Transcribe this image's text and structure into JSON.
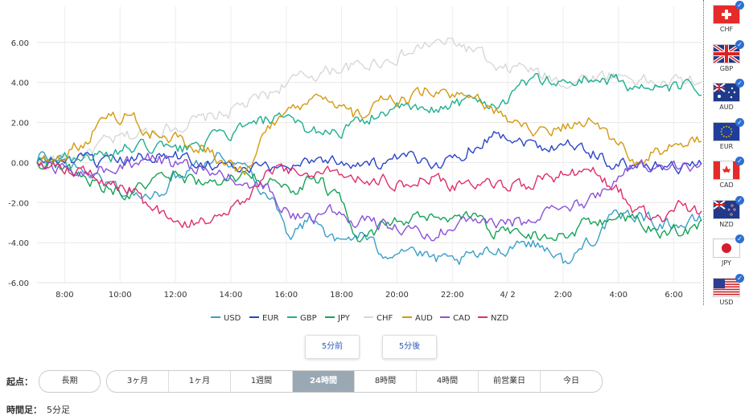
{
  "chart_data": {
    "type": "line",
    "x_ticks": [
      "8:00",
      "10:00",
      "12:00",
      "14:00",
      "16:00",
      "18:00",
      "20:00",
      "22:00",
      "4/ 2",
      "2:00",
      "4:00",
      "6:00"
    ],
    "y_ticks": [
      "6.00",
      "4.00",
      "2.00",
      "0.00",
      "-2.00",
      "-4.00",
      "-6.00"
    ],
    "ylim": [
      -6,
      7.8
    ],
    "xlim": [
      0,
      288
    ],
    "grid": true,
    "series": [
      {
        "name": "USD",
        "color": "#3a9fc9",
        "keys": [
          0,
          0.3,
          10,
          0.1,
          20,
          -0.4,
          30,
          -1.0,
          40,
          -1.5,
          50,
          -1.8,
          60,
          -0.7,
          70,
          0.1,
          80,
          0.3,
          90,
          -0.2,
          100,
          -1.5,
          110,
          -3.5,
          120,
          -2.8,
          130,
          -4.0,
          140,
          -3.6,
          150,
          -4.5,
          160,
          -4.2,
          170,
          -4.8,
          180,
          -5.0,
          190,
          -4.7,
          200,
          -4.4,
          210,
          -3.9,
          220,
          -4.2,
          230,
          -5.0,
          240,
          -3.8,
          250,
          -2.8,
          260,
          -2.6,
          270,
          -3.0,
          280,
          -3.1,
          288,
          -2.9
        ]
      },
      {
        "name": "EUR",
        "color": "#2b45c9",
        "keys": [
          0,
          0.0,
          10,
          0.1,
          20,
          0.1,
          30,
          -0.1,
          40,
          0.1,
          50,
          0.4,
          60,
          0.3,
          70,
          0.1,
          80,
          -0.1,
          90,
          -0.4,
          100,
          -0.3,
          110,
          -0.1,
          120,
          0.2,
          130,
          0.1,
          140,
          0.0,
          150,
          -0.1,
          160,
          0.2,
          170,
          0.0,
          180,
          0.1,
          190,
          0.9,
          200,
          1.5,
          210,
          1.1,
          220,
          0.8,
          230,
          1.0,
          240,
          0.5,
          250,
          0.0,
          260,
          -0.2,
          270,
          -0.1,
          280,
          -0.2,
          288,
          -0.1
        ]
      },
      {
        "name": "GBP",
        "color": "#1fae91",
        "keys": [
          0,
          0.0,
          10,
          0.3,
          20,
          0.4,
          30,
          0.2,
          40,
          0.7,
          50,
          0.8,
          60,
          0.6,
          70,
          0.9,
          80,
          1.3,
          90,
          1.7,
          100,
          2.1,
          110,
          2.0,
          120,
          1.6,
          130,
          1.6,
          140,
          1.9,
          150,
          2.6,
          160,
          2.7,
          170,
          2.5,
          180,
          3.0,
          190,
          3.1,
          200,
          2.9,
          210,
          4.0,
          220,
          4.1,
          230,
          4.0,
          240,
          4.2,
          250,
          4.1,
          260,
          3.8,
          270,
          3.6,
          280,
          3.8,
          288,
          3.7
        ]
      },
      {
        "name": "JPY",
        "color": "#17a357",
        "keys": [
          0,
          0.0,
          10,
          -0.1,
          20,
          -0.7,
          30,
          -1.2,
          40,
          -1.6,
          50,
          -1.0,
          60,
          -0.6,
          70,
          -0.9,
          80,
          -1.2,
          90,
          -0.6,
          100,
          -1.0,
          110,
          -1.4,
          120,
          -0.7,
          130,
          -1.7,
          140,
          -3.6,
          150,
          -3.3,
          160,
          -2.9,
          170,
          -2.8,
          180,
          -3.0,
          190,
          -2.7,
          200,
          -3.5,
          210,
          -3.4,
          220,
          -3.7,
          230,
          -3.5,
          240,
          -3.0,
          250,
          -2.8,
          260,
          -2.9,
          270,
          -3.6,
          280,
          -3.4,
          288,
          -3.1
        ]
      },
      {
        "name": "CHF",
        "color": "#d8d8d8",
        "keys": [
          0,
          0.0,
          10,
          0.2,
          20,
          0.4,
          30,
          1.0,
          40,
          1.3,
          50,
          1.6,
          60,
          1.8,
          70,
          2.1,
          80,
          2.4,
          90,
          2.9,
          100,
          3.4,
          110,
          4.1,
          120,
          4.4,
          130,
          4.7,
          140,
          4.8,
          150,
          5.1,
          160,
          5.4,
          170,
          5.9,
          180,
          6.0,
          190,
          5.6,
          200,
          4.5,
          210,
          4.8,
          220,
          4.3,
          230,
          4.0,
          240,
          4.3,
          250,
          4.4,
          260,
          4.2,
          270,
          3.9,
          280,
          4.1,
          288,
          4.0
        ]
      },
      {
        "name": "AUD",
        "color": "#d49a10",
        "keys": [
          0,
          0.0,
          10,
          0.4,
          20,
          1.0,
          30,
          2.4,
          40,
          2.3,
          50,
          1.5,
          60,
          1.2,
          70,
          0.8,
          80,
          0.2,
          90,
          -0.4,
          100,
          1.7,
          110,
          2.6,
          120,
          3.1,
          130,
          2.7,
          140,
          2.3,
          150,
          3.0,
          160,
          3.2,
          170,
          3.6,
          180,
          3.2,
          190,
          3.1,
          200,
          2.5,
          210,
          1.8,
          220,
          1.6,
          230,
          1.9,
          240,
          2.0,
          250,
          1.2,
          260,
          0.1,
          270,
          0.6,
          280,
          0.9,
          288,
          1.0
        ]
      },
      {
        "name": "CAD",
        "color": "#8a52d9",
        "keys": [
          0,
          0.0,
          10,
          -0.3,
          20,
          -0.6,
          30,
          -0.3,
          40,
          0.0,
          50,
          0.2,
          60,
          -0.1,
          70,
          -0.3,
          80,
          -0.7,
          90,
          -0.9,
          100,
          -1.4,
          110,
          -2.6,
          120,
          -2.7,
          130,
          -2.4,
          140,
          -2.9,
          150,
          -3.1,
          160,
          -3.2,
          170,
          -3.7,
          180,
          -3.2,
          190,
          -2.9,
          200,
          -3.1,
          210,
          -3.0,
          220,
          -2.4,
          230,
          -2.3,
          240,
          -1.9,
          250,
          -0.8,
          260,
          -0.2,
          270,
          0.0,
          280,
          -0.1,
          288,
          -0.1
        ]
      },
      {
        "name": "NZD",
        "color": "#e02d6e",
        "keys": [
          0,
          0.0,
          10,
          -0.2,
          20,
          -0.4,
          30,
          -1.0,
          40,
          -1.3,
          50,
          -2.4,
          60,
          -3.2,
          70,
          -3.0,
          80,
          -2.4,
          90,
          -2.1,
          100,
          -0.5,
          110,
          -0.4,
          120,
          -0.6,
          130,
          -0.5,
          140,
          -0.7,
          150,
          -0.9,
          160,
          -1.2,
          170,
          -0.8,
          180,
          -1.2,
          190,
          -1.0,
          200,
          -1.3,
          210,
          -1.1,
          220,
          -0.8,
          230,
          -0.6,
          240,
          -0.5,
          250,
          -1.2,
          260,
          -2.5,
          270,
          -2.9,
          280,
          -2.2,
          288,
          -2.4
        ]
      }
    ]
  },
  "flags": [
    {
      "code": "CHF",
      "icon": "flag-ch-icon"
    },
    {
      "code": "GBP",
      "icon": "flag-gb-icon"
    },
    {
      "code": "AUD",
      "icon": "flag-au-icon"
    },
    {
      "code": "EUR",
      "icon": "flag-eu-icon"
    },
    {
      "code": "CAD",
      "icon": "flag-ca-icon"
    },
    {
      "code": "NZD",
      "icon": "flag-nz-icon"
    },
    {
      "code": "JPY",
      "icon": "flag-jp-icon"
    },
    {
      "code": "USD",
      "icon": "flag-us-icon"
    }
  ],
  "nav": {
    "prev_label": "5分前",
    "next_label": "5分後"
  },
  "controls": {
    "origin_label": "起点：",
    "long_term_label": "長期",
    "ranges": [
      "3ヶ月",
      "1ヶ月",
      "1週間",
      "24時間",
      "8時間",
      "4時間",
      "前営業日",
      "今日"
    ],
    "active_range": "24時間",
    "timeframe_label": "時間足：",
    "timeframe_value": "5分足"
  }
}
